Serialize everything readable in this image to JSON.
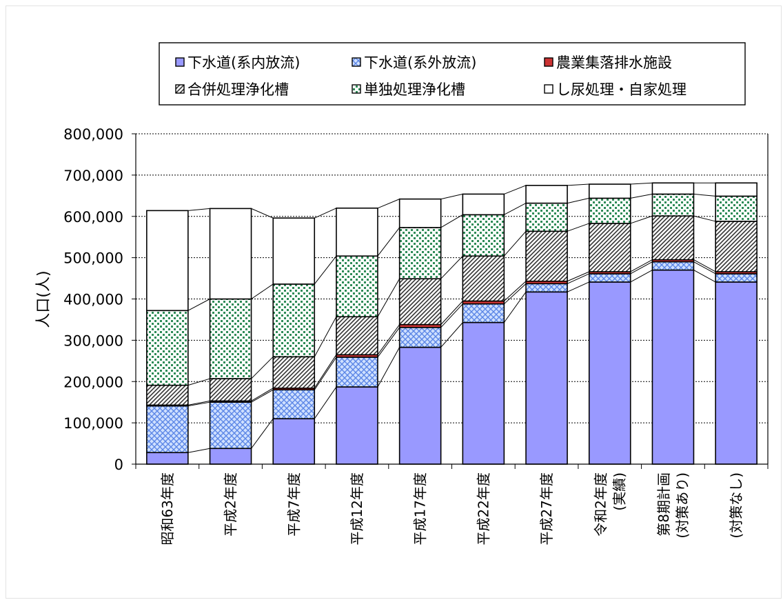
{
  "chart_data": {
    "type": "bar",
    "stacked": true,
    "ylabel": "人口(人)",
    "ylim": [
      0,
      800000
    ],
    "yticks": [
      "0",
      "100,000",
      "200,000",
      "300,000",
      "400,000",
      "500,000",
      "600,000",
      "700,000",
      "800,000"
    ],
    "grid": "horizontal-dotted",
    "legend_position": "top",
    "connector_lines": true,
    "categories": [
      [
        "昭和63年度"
      ],
      [
        "平成2年度"
      ],
      [
        "平成7年度"
      ],
      [
        "平成12年度"
      ],
      [
        "平成17年度"
      ],
      [
        "平成22年度"
      ],
      [
        "平成27年度"
      ],
      [
        "令和2年度",
        "(実績)"
      ],
      [
        "第8期計画",
        "(対策あり)"
      ],
      [
        "(対策なし)"
      ]
    ],
    "series": [
      {
        "name": "下水道(系内放流)",
        "color": "#9999ff",
        "pattern": "solid",
        "values": [
          28000,
          38000,
          110000,
          187000,
          283000,
          343000,
          417000,
          441000,
          470000,
          441000
        ]
      },
      {
        "name": "下水道(系外放流)",
        "color": "#6699ff",
        "pattern": "crosshatch",
        "values": [
          113000,
          112000,
          70000,
          72000,
          48000,
          45000,
          20000,
          20000,
          20000,
          20000
        ]
      },
      {
        "name": "農業集落排水施設",
        "color": "#cc3333",
        "pattern": "solid",
        "values": [
          2000,
          3000,
          4000,
          6000,
          7000,
          7000,
          6000,
          5000,
          5000,
          5000
        ]
      },
      {
        "name": "合併処理浄化槽",
        "color": "#555555",
        "pattern": "diagonal",
        "values": [
          48000,
          54000,
          76000,
          92000,
          111000,
          109000,
          121000,
          117000,
          106000,
          122000
        ]
      },
      {
        "name": "単独処理浄化槽",
        "color": "#339966",
        "pattern": "dots",
        "values": [
          181000,
          193000,
          176000,
          147000,
          124000,
          100000,
          68000,
          61000,
          53000,
          61000
        ]
      },
      {
        "name": "し尿処理・自家処理",
        "color": "#ffffff",
        "pattern": "solid",
        "values": [
          242000,
          219000,
          160000,
          116000,
          69000,
          50000,
          43000,
          34000,
          27000,
          32000
        ]
      }
    ]
  }
}
